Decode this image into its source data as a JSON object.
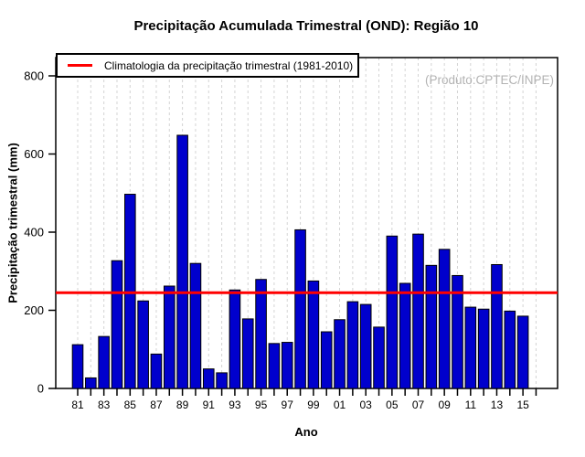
{
  "chart_data": {
    "type": "bar",
    "title": "Precipitação Acumulada Trimestral (OND): Região 10",
    "xlabel": "Ano",
    "ylabel": "Precipitação trimestral (mm)",
    "annotation": "(Produto:CPTEC/INPE)",
    "legend_label": "Climatologia da precipitação trimestral (1981-2010)",
    "legend_position": "top-left",
    "ylim": [
      0,
      800
    ],
    "yticks": [
      0,
      200,
      400,
      600,
      800
    ],
    "grid": "vertical dashed gridline at every year",
    "x_axis_last_unlabeled_slot": "2016",
    "categories": [
      "1981",
      "1982",
      "1983",
      "1984",
      "1985",
      "1986",
      "1987",
      "1988",
      "1989",
      "1990",
      "1991",
      "1992",
      "1993",
      "1994",
      "1995",
      "1996",
      "1997",
      "1998",
      "1999",
      "2000",
      "2001",
      "2002",
      "2003",
      "2004",
      "2005",
      "2006",
      "2007",
      "2008",
      "2009",
      "2010",
      "2011",
      "2012",
      "2013",
      "2014",
      "2015"
    ],
    "x_tick_labels": [
      "81",
      "83",
      "85",
      "87",
      "89",
      "91",
      "93",
      "95",
      "97",
      "99",
      "01",
      "03",
      "05",
      "07",
      "09",
      "11",
      "13",
      "15"
    ],
    "values": [
      112,
      27,
      133,
      327,
      497,
      224,
      88,
      262,
      648,
      320,
      50,
      40,
      252,
      178,
      279,
      115,
      118,
      406,
      275,
      145,
      176,
      222,
      215,
      157,
      390,
      269,
      395,
      315,
      356,
      289,
      208,
      203,
      317,
      198,
      185
    ],
    "climatology_mm": 245,
    "colors": {
      "bar": "#0000cd",
      "bar_border": "#000000",
      "climatology_line": "#ff0000",
      "grid": "#d4d4d4",
      "axis": "#000000",
      "watermark": "#b3b3b3"
    }
  }
}
